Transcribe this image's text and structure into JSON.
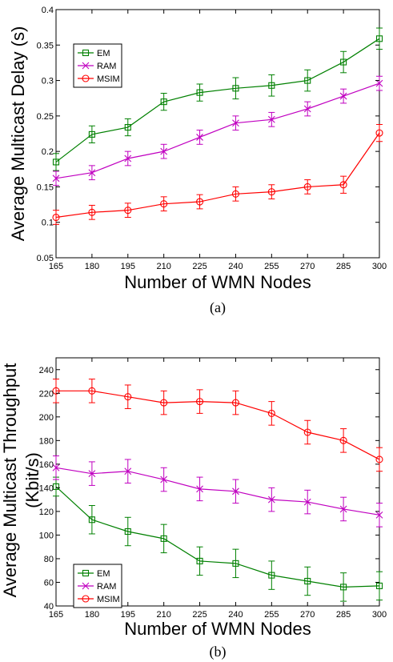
{
  "chart_data": [
    {
      "type": "line",
      "caption": "(a)",
      "xlabel": "Number of WMN Nodes",
      "ylabel": "Average Multicast Delay (s)",
      "x": [
        165,
        180,
        195,
        210,
        225,
        240,
        255,
        270,
        285,
        300
      ],
      "xlim": [
        165,
        300
      ],
      "ylim": [
        0.05,
        0.4
      ],
      "yticks": [
        0.05,
        0.1,
        0.15,
        0.2,
        0.25,
        0.3,
        0.35,
        0.4
      ],
      "ytick_labels": [
        "0.05",
        "0.1",
        "0.15",
        "0.2",
        "0.25",
        "0.3",
        "0.35",
        "0.4"
      ],
      "grid": false,
      "legend_position": "upper-left",
      "series": [
        {
          "name": "EM",
          "color": "#008000",
          "marker": "square",
          "values": [
            0.185,
            0.224,
            0.234,
            0.27,
            0.283,
            0.289,
            0.293,
            0.3,
            0.326,
            0.359
          ],
          "errors": [
            0.012,
            0.012,
            0.012,
            0.012,
            0.012,
            0.015,
            0.015,
            0.015,
            0.015,
            0.015
          ]
        },
        {
          "name": "RAM",
          "color": "#c000c0",
          "marker": "x",
          "values": [
            0.162,
            0.17,
            0.19,
            0.2,
            0.22,
            0.24,
            0.245,
            0.26,
            0.278,
            0.296
          ],
          "errors": [
            0.01,
            0.01,
            0.01,
            0.01,
            0.01,
            0.01,
            0.01,
            0.01,
            0.01,
            0.01
          ]
        },
        {
          "name": "MSIM",
          "color": "#ff0000",
          "marker": "circle",
          "values": [
            0.107,
            0.114,
            0.117,
            0.126,
            0.129,
            0.14,
            0.143,
            0.15,
            0.153,
            0.226
          ],
          "errors": [
            0.01,
            0.01,
            0.01,
            0.01,
            0.01,
            0.01,
            0.01,
            0.01,
            0.012,
            0.012
          ]
        }
      ]
    },
    {
      "type": "line",
      "caption": "(b)",
      "xlabel": "Number of WMN Nodes",
      "ylabel": "Average Multicast Throughput",
      "ylabel2": "(Kbit/s)",
      "x": [
        165,
        180,
        195,
        210,
        225,
        240,
        255,
        270,
        285,
        300
      ],
      "xlim": [
        165,
        300
      ],
      "ylim": [
        40,
        250
      ],
      "yticks": [
        40,
        60,
        80,
        100,
        120,
        140,
        160,
        180,
        200,
        220,
        240
      ],
      "ytick_labels": [
        "40",
        "60",
        "80",
        "100",
        "120",
        "140",
        "160",
        "180",
        "200",
        "220",
        "240"
      ],
      "grid": false,
      "legend_position": "lower-left",
      "series": [
        {
          "name": "EM",
          "color": "#008000",
          "marker": "square",
          "values": [
            141,
            113,
            103,
            97,
            78,
            76,
            66,
            61,
            56,
            57
          ],
          "errors": [
            8,
            12,
            12,
            12,
            12,
            12,
            12,
            12,
            12,
            12
          ]
        },
        {
          "name": "RAM",
          "color": "#c000c0",
          "marker": "x",
          "values": [
            157,
            152,
            154,
            147,
            139,
            137,
            130,
            128,
            122,
            117
          ],
          "errors": [
            10,
            10,
            10,
            10,
            10,
            10,
            10,
            10,
            10,
            10
          ]
        },
        {
          "name": "MSIM",
          "color": "#ff0000",
          "marker": "circle",
          "values": [
            222,
            222,
            217,
            212,
            213,
            212,
            203,
            187,
            180,
            164
          ],
          "errors": [
            10,
            10,
            10,
            10,
            10,
            10,
            10,
            10,
            10,
            10
          ]
        }
      ]
    }
  ]
}
